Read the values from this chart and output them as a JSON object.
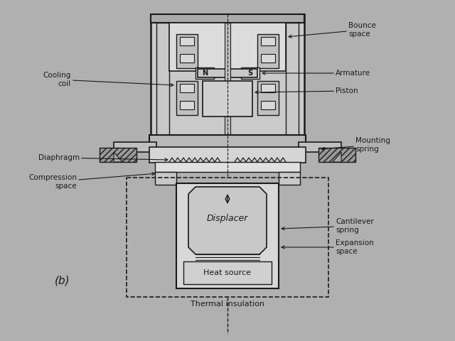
{
  "bg_color": "#b0b0b0",
  "line_color": "#1a1a1a",
  "label_b": "(b)",
  "labels": {
    "bounce_space": "Bounce\nspace",
    "armature": "Armature",
    "piston": "Piston",
    "mounting_spring": "Mounting\nspring",
    "cooling_coil": "Cooling\ncoil",
    "diaphragm": "Diaphragm",
    "compression_space": "Compression\nspace",
    "displacer": "Displacer",
    "cantilever_spring": "Cantilever\nspring",
    "expansion_space": "Expansion\nspace",
    "heat_source": "Heat source",
    "thermal_insulation": "Thermal insulation",
    "N": "N",
    "S": "S"
  },
  "figsize": [
    6.4,
    4.8
  ],
  "dpi": 100
}
